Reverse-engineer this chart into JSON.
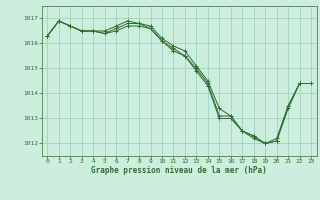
{
  "title": "Graphe pression niveau de la mer (hPa)",
  "bg_color": "#cceedd",
  "grid_color": "#99ccbb",
  "line_color": "#2d6e2d",
  "ylim": [
    1011.5,
    1017.5
  ],
  "yticks": [
    1012,
    1013,
    1014,
    1015,
    1016,
    1017
  ],
  "xlim": [
    -0.5,
    23.5
  ],
  "xticks": [
    0,
    1,
    2,
    3,
    4,
    5,
    6,
    7,
    8,
    9,
    10,
    11,
    12,
    13,
    14,
    15,
    16,
    17,
    18,
    19,
    20,
    21,
    22,
    23
  ],
  "s1": [
    1016.3,
    1016.9,
    1016.7,
    1016.5,
    1016.5,
    1016.4,
    1016.5,
    1016.7,
    1016.7,
    1016.6,
    1016.1,
    1015.8,
    1015.5,
    1015.0,
    1014.4,
    1013.1,
    1013.1,
    1012.5,
    1012.3,
    1012.0,
    1012.1,
    1013.4,
    1014.4,
    null
  ],
  "s2": [
    1016.3,
    1016.9,
    1016.7,
    1016.5,
    1016.5,
    1016.5,
    1016.7,
    1016.9,
    1016.8,
    1016.7,
    1016.2,
    1015.9,
    1015.7,
    1015.1,
    1014.5,
    1013.4,
    1013.1,
    1012.5,
    1012.3,
    1012.0,
    1012.1,
    1013.5,
    1014.4,
    null
  ],
  "s3": [
    1016.3,
    1016.9,
    1016.7,
    1016.5,
    1016.5,
    1016.4,
    1016.6,
    1016.8,
    1016.8,
    1016.6,
    1016.1,
    1015.7,
    1015.5,
    1014.9,
    1014.3,
    1013.0,
    1013.0,
    1012.5,
    1012.2,
    1012.0,
    1012.2,
    1013.5,
    1014.4,
    1014.4
  ]
}
